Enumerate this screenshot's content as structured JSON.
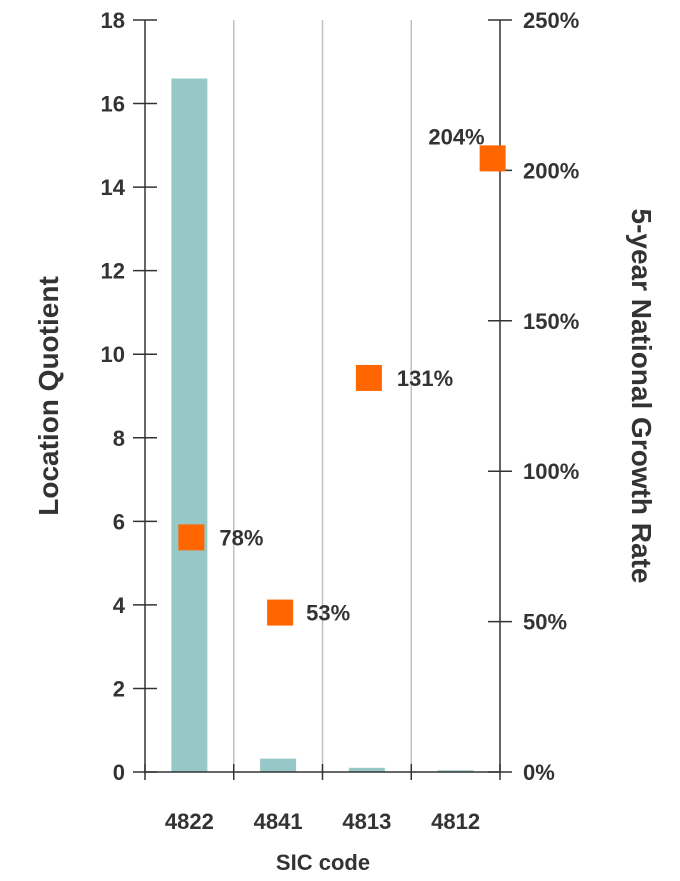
{
  "chart_data": {
    "type": "bar",
    "categories": [
      "4822",
      "4841",
      "4813",
      "4812"
    ],
    "xlabel": "SIC code",
    "series": [
      {
        "name": "Location Quotient",
        "type": "bar",
        "axis": "left",
        "values": [
          16.6,
          0.32,
          0.1,
          0.04
        ]
      },
      {
        "name": "5-year National Growth Rate",
        "type": "scatter",
        "axis": "right",
        "values": [
          78,
          53,
          131,
          204
        ],
        "labels": [
          "78%",
          "53%",
          "131%",
          "204%"
        ]
      }
    ],
    "ylabel": "Location Quotient",
    "ylim": [
      0,
      18
    ],
    "yticks": [
      "0",
      "2",
      "4",
      "6",
      "8",
      "10",
      "12",
      "14",
      "16",
      "18"
    ],
    "y2label": "5-year National Growth Rate",
    "y2lim": [
      0,
      250
    ],
    "y2ticks": [
      "0%",
      "50%",
      "100%",
      "150%",
      "200%",
      "250%"
    ],
    "grid": "vertical",
    "legend": "none",
    "colors": {
      "bar": "#96c8c8",
      "marker": "#ff6600",
      "grid": "#c0c0c0",
      "axis": "#333333"
    }
  }
}
